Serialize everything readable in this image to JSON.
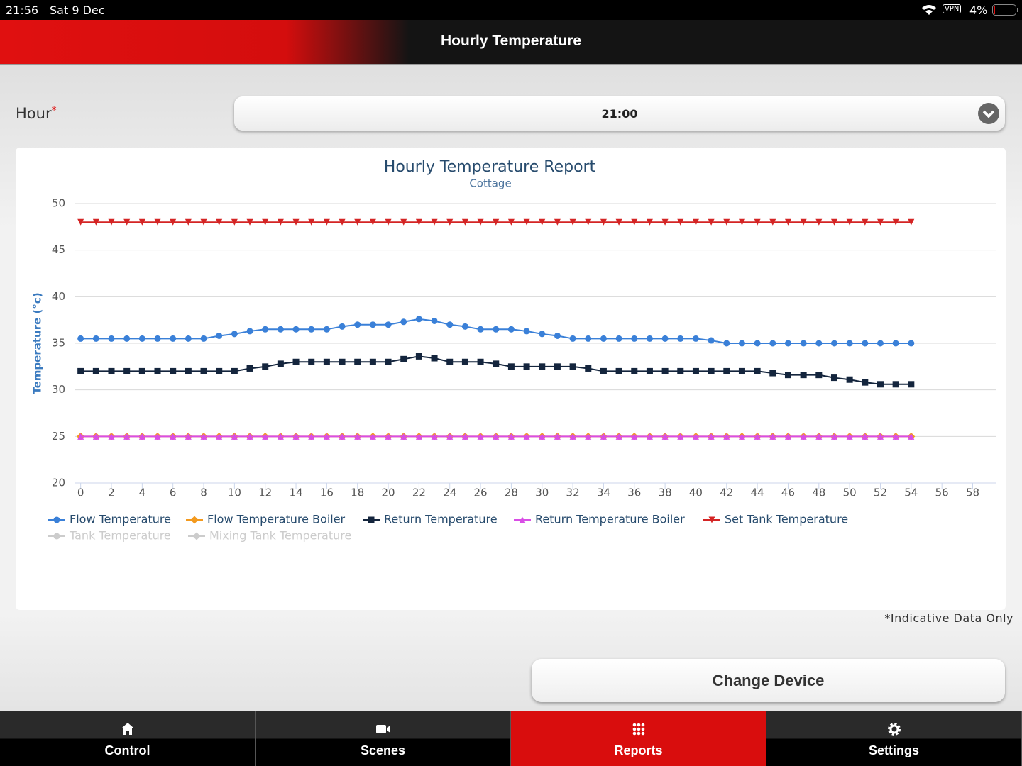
{
  "status_bar": {
    "time": "21:56",
    "date": "Sat 9 Dec",
    "vpn": "VPN",
    "battery": "4%"
  },
  "header": {
    "title": "Hourly Temperature"
  },
  "form": {
    "label": "Hour",
    "required_mark": "*",
    "value": "21:00"
  },
  "chart_data": {
    "type": "line",
    "title": "Hourly Temperature Report",
    "subtitle": "Cottage",
    "y_label": "Temperature (°c)",
    "xlim": [
      -0.4,
      59.5
    ],
    "xticks": [
      0,
      2,
      4,
      6,
      8,
      10,
      12,
      14,
      16,
      18,
      20,
      22,
      24,
      26,
      28,
      30,
      32,
      34,
      36,
      38,
      40,
      42,
      44,
      46,
      48,
      50,
      52,
      54,
      56,
      58
    ],
    "ylim": [
      20,
      50
    ],
    "yticks": [
      20,
      25,
      30,
      35,
      40,
      45,
      50
    ],
    "grid": true,
    "x": [
      0,
      1,
      2,
      3,
      4,
      5,
      6,
      7,
      8,
      9,
      10,
      11,
      12,
      13,
      14,
      15,
      16,
      17,
      18,
      19,
      20,
      21,
      22,
      23,
      24,
      25,
      26,
      27,
      28,
      29,
      30,
      31,
      32,
      33,
      34,
      35,
      36,
      37,
      38,
      39,
      40,
      41,
      42,
      43,
      44,
      45,
      46,
      47,
      48,
      49,
      50,
      51,
      52,
      53,
      54
    ],
    "series": [
      {
        "name": "Flow Temperature",
        "color": "#3a80d8",
        "marker": "circle",
        "values": [
          35.5,
          35.5,
          35.5,
          35.5,
          35.5,
          35.5,
          35.5,
          35.5,
          35.5,
          35.8,
          36.0,
          36.3,
          36.5,
          36.5,
          36.5,
          36.5,
          36.5,
          36.8,
          37.0,
          37.0,
          37.0,
          37.3,
          37.6,
          37.4,
          37.0,
          36.8,
          36.5,
          36.5,
          36.5,
          36.3,
          36.0,
          35.8,
          35.5,
          35.5,
          35.5,
          35.5,
          35.5,
          35.5,
          35.5,
          35.5,
          35.5,
          35.3,
          35.0,
          35.0,
          35.0,
          35.0,
          35.0,
          35.0,
          35.0,
          35.0,
          35.0,
          35.0,
          35.0,
          35.0,
          35.0
        ]
      },
      {
        "name": "Flow Temperature Boiler",
        "color": "#f39a1e",
        "marker": "diamond",
        "values": [
          25,
          25,
          25,
          25,
          25,
          25,
          25,
          25,
          25,
          25,
          25,
          25,
          25,
          25,
          25,
          25,
          25,
          25,
          25,
          25,
          25,
          25,
          25,
          25,
          25,
          25,
          25,
          25,
          25,
          25,
          25,
          25,
          25,
          25,
          25,
          25,
          25,
          25,
          25,
          25,
          25,
          25,
          25,
          25,
          25,
          25,
          25,
          25,
          25,
          25,
          25,
          25,
          25,
          25,
          25
        ]
      },
      {
        "name": "Return Temperature",
        "color": "#14253d",
        "marker": "square",
        "values": [
          32.0,
          32.0,
          32.0,
          32.0,
          32.0,
          32.0,
          32.0,
          32.0,
          32.0,
          32.0,
          32.0,
          32.3,
          32.5,
          32.8,
          33.0,
          33.0,
          33.0,
          33.0,
          33.0,
          33.0,
          33.0,
          33.3,
          33.6,
          33.4,
          33.0,
          33.0,
          33.0,
          32.8,
          32.5,
          32.5,
          32.5,
          32.5,
          32.5,
          32.3,
          32.0,
          32.0,
          32.0,
          32.0,
          32.0,
          32.0,
          32.0,
          32.0,
          32.0,
          32.0,
          32.0,
          31.8,
          31.6,
          31.6,
          31.6,
          31.3,
          31.1,
          30.8,
          30.6,
          30.6,
          30.6
        ]
      },
      {
        "name": "Return Temperature Boiler",
        "color": "#d94ee6",
        "marker": "triangle",
        "values": [
          25,
          25,
          25,
          25,
          25,
          25,
          25,
          25,
          25,
          25,
          25,
          25,
          25,
          25,
          25,
          25,
          25,
          25,
          25,
          25,
          25,
          25,
          25,
          25,
          25,
          25,
          25,
          25,
          25,
          25,
          25,
          25,
          25,
          25,
          25,
          25,
          25,
          25,
          25,
          25,
          25,
          25,
          25,
          25,
          25,
          25,
          25,
          25,
          25,
          25,
          25,
          25,
          25,
          25,
          25
        ]
      },
      {
        "name": "Set Tank Temperature",
        "color": "#d42424",
        "marker": "triangle-down",
        "values": [
          48,
          48,
          48,
          48,
          48,
          48,
          48,
          48,
          48,
          48,
          48,
          48,
          48,
          48,
          48,
          48,
          48,
          48,
          48,
          48,
          48,
          48,
          48,
          48,
          48,
          48,
          48,
          48,
          48,
          48,
          48,
          48,
          48,
          48,
          48,
          48,
          48,
          48,
          48,
          48,
          48,
          48,
          48,
          48,
          48,
          48,
          48,
          48,
          48,
          48,
          48,
          48,
          48,
          48,
          48
        ]
      },
      {
        "name": "Tank Temperature",
        "color": "#cccccc",
        "marker": "circle",
        "hidden": true
      },
      {
        "name": "Mixing Tank Temperature",
        "color": "#cccccc",
        "marker": "diamond",
        "hidden": true
      }
    ]
  },
  "note": "*Indicative Data Only",
  "button": "Change Device",
  "tabs": [
    {
      "label": "Control"
    },
    {
      "label": "Scenes"
    },
    {
      "label": "Reports",
      "active": true
    },
    {
      "label": "Settings"
    }
  ]
}
